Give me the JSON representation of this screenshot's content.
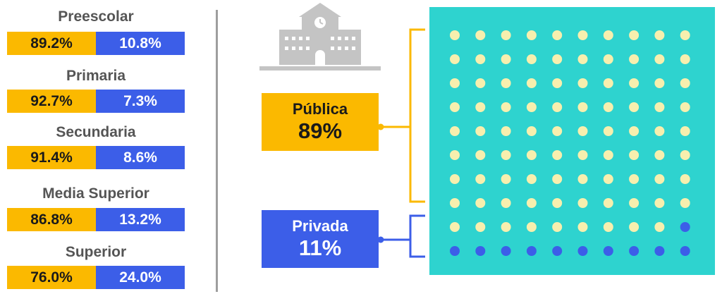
{
  "colors": {
    "publica": "#fbb900",
    "privada": "#3c5ee8",
    "waffle_bg": "#2ed3cf",
    "dot_publica": "#f7efae",
    "dot_privada": "#3c5ee8",
    "title_text": "#555555",
    "divider": "#9e9e9e",
    "school_icon": "#c4c4c4"
  },
  "icons": [
    "school-building-icon",
    "clock-icon"
  ],
  "levels": [
    {
      "name": "Preescolar",
      "publica": "89.2%",
      "privada": "10.8%"
    },
    {
      "name": "Primaria",
      "publica": "92.7%",
      "privada": "7.3%"
    },
    {
      "name": "Secundaria",
      "publica": "91.4%",
      "privada": "8.6%"
    },
    {
      "name": "Media Superior",
      "publica": "86.8%",
      "privada": "13.2%"
    },
    {
      "name": "Superior",
      "publica": "76.0%",
      "privada": "24.0%"
    }
  ],
  "total": {
    "publica_label": "Pública",
    "publica_pct": "89%",
    "privada_label": "Privada",
    "privada_pct": "11%"
  },
  "chart_data": [
    {
      "type": "bar",
      "stacked": true,
      "categories": [
        "Preescolar",
        "Primaria",
        "Secundaria",
        "Media Superior",
        "Superior"
      ],
      "series": [
        {
          "values": [
            89.2,
            92.7,
            91.4,
            86.8,
            76.0
          ]
        },
        {
          "values": [
            10.8,
            7.3,
            8.6,
            13.2,
            24.0
          ]
        }
      ]
    },
    {
      "type": "waffle",
      "grid": [
        10,
        10
      ],
      "categories": [
        "Pública",
        "Privada"
      ],
      "values": [
        89,
        11
      ]
    }
  ]
}
